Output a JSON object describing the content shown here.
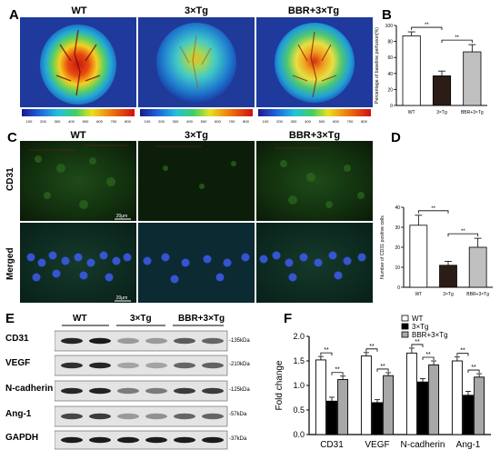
{
  "panels": {
    "A": {
      "label": "A",
      "titles": [
        "WT",
        "3×Tg",
        "BBR+3×Tg"
      ],
      "scale_ticks": [
        "100",
        "200",
        "300",
        "400",
        "500",
        "600",
        "700",
        "800"
      ]
    },
    "B": {
      "label": "B",
      "ylabel": "Percentage of baseline perfusion(%)",
      "sig": [
        "**",
        "**"
      ]
    },
    "C": {
      "label": "C",
      "titles": [
        "WT",
        "3×Tg",
        "BBR+3×Tg"
      ],
      "row_labels": [
        "CD31",
        "Merged"
      ],
      "scale_bar": "20μm"
    },
    "D": {
      "label": "D",
      "ylabel": "Number of CD31 positive cells",
      "sig": [
        "**",
        "**"
      ]
    },
    "E": {
      "label": "E",
      "groups": [
        "WT",
        "3×Tg",
        "BBR+3×Tg"
      ],
      "proteins": [
        "CD31",
        "VEGF",
        "N-cadherin",
        "Ang-1",
        "GAPDH"
      ],
      "kda": [
        "-135kDa",
        "-210kDa",
        "-125kDa",
        "-57kDa",
        "-37kDa"
      ]
    },
    "F": {
      "label": "F",
      "ylabel": "Fold change",
      "legend": [
        "WT",
        "3×Tg",
        "BBR+3×Tg"
      ],
      "sig": "**"
    }
  },
  "chart_data": [
    {
      "id": "B",
      "type": "bar",
      "categories": [
        "WT",
        "3×Tg",
        "BBR+3×Tg"
      ],
      "values": [
        87,
        37,
        67
      ],
      "errors": [
        5,
        6,
        9
      ],
      "ylim": [
        0,
        100
      ],
      "yticks": [
        "0",
        "20",
        "40",
        "60",
        "80",
        "100"
      ],
      "colors": [
        "#ffffff",
        "#2b1d16",
        "#c0c0c0"
      ]
    },
    {
      "id": "D",
      "type": "bar",
      "categories": [
        "WT",
        "3×Tg",
        "BBR+3×Tg"
      ],
      "values": [
        31,
        11,
        20
      ],
      "errors": [
        5,
        2,
        4.5
      ],
      "ylim": [
        0,
        40
      ],
      "yticks": [
        "0",
        "10",
        "20",
        "30",
        "40"
      ],
      "colors": [
        "#ffffff",
        "#2b1d16",
        "#c0c0c0"
      ]
    },
    {
      "id": "F",
      "type": "bar",
      "categories": [
        "CD31",
        "VEGF",
        "N-cadherin",
        "Ang-1"
      ],
      "series": [
        {
          "name": "WT",
          "values": [
            1.52,
            1.6,
            1.66,
            1.5
          ],
          "errors": [
            0.07,
            0.07,
            0.1,
            0.08
          ],
          "color": "#ffffff"
        },
        {
          "name": "3×Tg",
          "values": [
            0.68,
            0.65,
            1.07,
            0.8
          ],
          "errors": [
            0.08,
            0.06,
            0.07,
            0.08
          ],
          "color": "#000000"
        },
        {
          "name": "BBR+3×Tg",
          "values": [
            1.12,
            1.2,
            1.42,
            1.17
          ],
          "errors": [
            0.07,
            0.06,
            0.08,
            0.07
          ],
          "color": "#a8a8a8"
        }
      ],
      "ylim": [
        0,
        2.0
      ],
      "yticks": [
        "0.0",
        "0.5",
        "1.0",
        "1.5",
        "2.0"
      ]
    }
  ]
}
